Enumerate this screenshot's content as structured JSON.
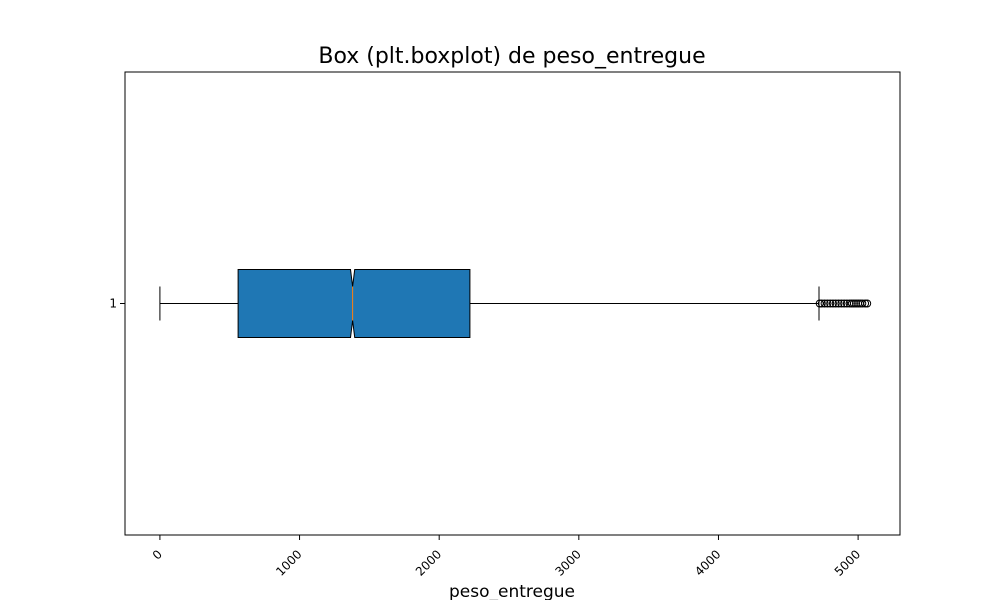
{
  "chart_data": {
    "type": "boxplot",
    "title": "Box (plt.boxplot) de peso_entregue",
    "xlabel": "peso_entregue",
    "ylabel": "",
    "orientation": "horizontal",
    "notch": true,
    "xlim": [
      -250,
      5300
    ],
    "x_ticks": [
      0,
      1000,
      2000,
      3000,
      4000,
      5000
    ],
    "y_ticks": [
      "1"
    ],
    "box_color": "#1f77b4",
    "median_color": "#ff7f0e",
    "boxes": [
      {
        "label": "1",
        "whisker_low": 0,
        "q1": 560,
        "median": 1380,
        "q3": 2220,
        "whisker_high": 4720,
        "notch_low": 1365,
        "notch_high": 1395,
        "outliers": [
          4725,
          4740,
          4760,
          4780,
          4800,
          4820,
          4840,
          4860,
          4880,
          4900,
          4920,
          4940,
          4955,
          4970,
          4985,
          5000,
          5015,
          5030,
          5050,
          5065
        ]
      }
    ]
  }
}
